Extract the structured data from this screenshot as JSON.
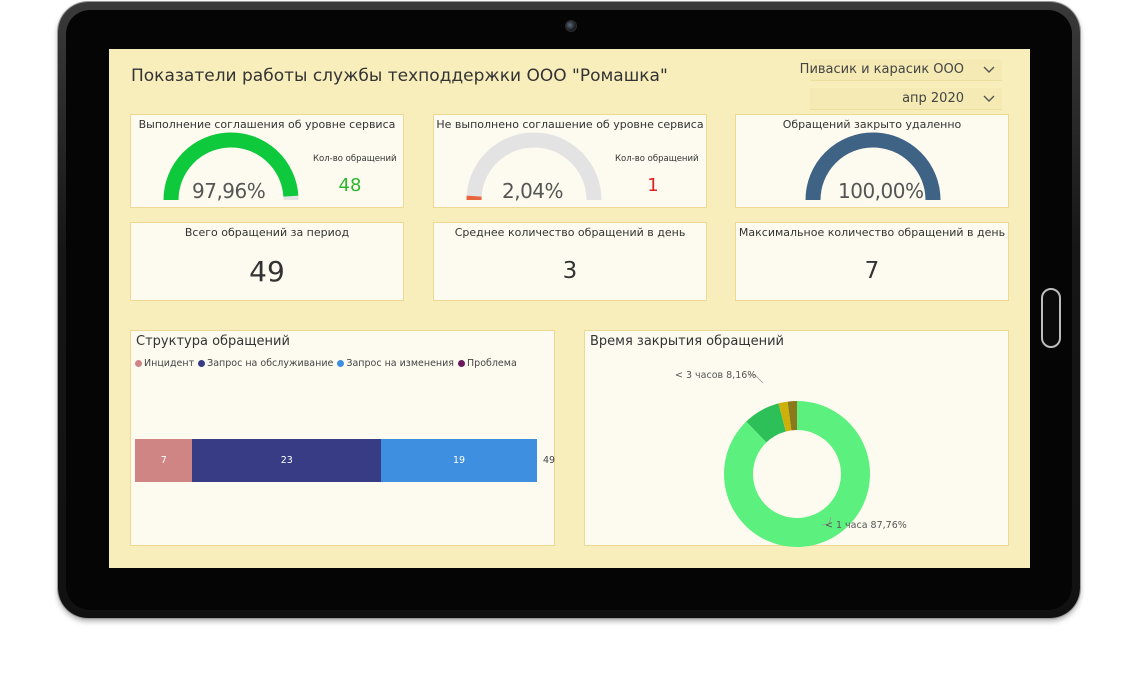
{
  "header": {
    "title": "Показатели работы службы техподдержки ООО \"Ромашка\"",
    "company_slicer": "Пивасик и карасик ООО",
    "period_slicer": "апр 2020"
  },
  "colors": {
    "gauge_met": "#0dc93b",
    "gauge_track": "#e3e3e3",
    "gauge_not_met": "#e8653d",
    "gauge_remote": "#3f6384",
    "count_met": "#2db52d",
    "count_not_met": "#e02020",
    "incident": "#d08585",
    "service_request": "#373c84",
    "change_request": "#3f8fe0",
    "problem": "#6b1a5e",
    "donut_main": "#5cf07e",
    "donut_second": "#2dc058",
    "donut_third": "#cdb10a",
    "donut_fourth": "#8a7a1b"
  },
  "kpi": {
    "sla_met": {
      "title": "Выполнение соглашения об уровне сервиса",
      "percent_label": "97,96%",
      "fraction": 0.9796,
      "count_label": "Кол-во обращений",
      "count": "48"
    },
    "sla_not_met": {
      "title": "Не выполнено соглашение об уровне сервиса",
      "percent_label": "2,04%",
      "fraction": 0.0204,
      "count_label": "Кол-во обращений",
      "count": "1"
    },
    "closed_remote": {
      "title": "Обращений закрыто удаленно",
      "percent_label": "100,00%",
      "fraction": 1.0
    },
    "total": {
      "title": "Всего обращений за период",
      "value": "49"
    },
    "avg_per_day": {
      "title": "Среднее количество обращений в день",
      "value": "3"
    },
    "max_per_day": {
      "title": "Максимальное количество обращений в день",
      "value": "7"
    }
  },
  "structure": {
    "title": "Структура обращений",
    "legend": [
      {
        "label": "Инцидент",
        "color_key": "incident"
      },
      {
        "label": "Запрос на обслуживание",
        "color_key": "service_request"
      },
      {
        "label": "Запрос на изменения",
        "color_key": "change_request"
      },
      {
        "label": "Проблема",
        "color_key": "problem"
      }
    ],
    "total_label": "49"
  },
  "closing_time": {
    "title": "Время закрытия обращений",
    "label_lt3": "< 3 часов 8,16%",
    "label_lt1": "< 1 часа 87,76%"
  },
  "chart_data": [
    {
      "type": "bar",
      "title": "Структура обращений",
      "orientation": "horizontal-stacked",
      "categories": [
        ""
      ],
      "series": [
        {
          "name": "Инцидент",
          "values": [
            7
          ]
        },
        {
          "name": "Запрос на обслуживание",
          "values": [
            23
          ]
        },
        {
          "name": "Запрос на изменения",
          "values": [
            19
          ]
        },
        {
          "name": "Проблема",
          "values": [
            0
          ]
        }
      ],
      "total": 49,
      "legend_position": "top-left"
    },
    {
      "type": "pie",
      "title": "Время закрытия обращений",
      "donut": true,
      "slices": [
        {
          "label": "< 1 часа",
          "value": 87.76
        },
        {
          "label": "< 3 часов",
          "value": 8.16
        },
        {
          "label": "",
          "value": 2.04
        },
        {
          "label": "",
          "value": 2.04
        }
      ]
    }
  ]
}
